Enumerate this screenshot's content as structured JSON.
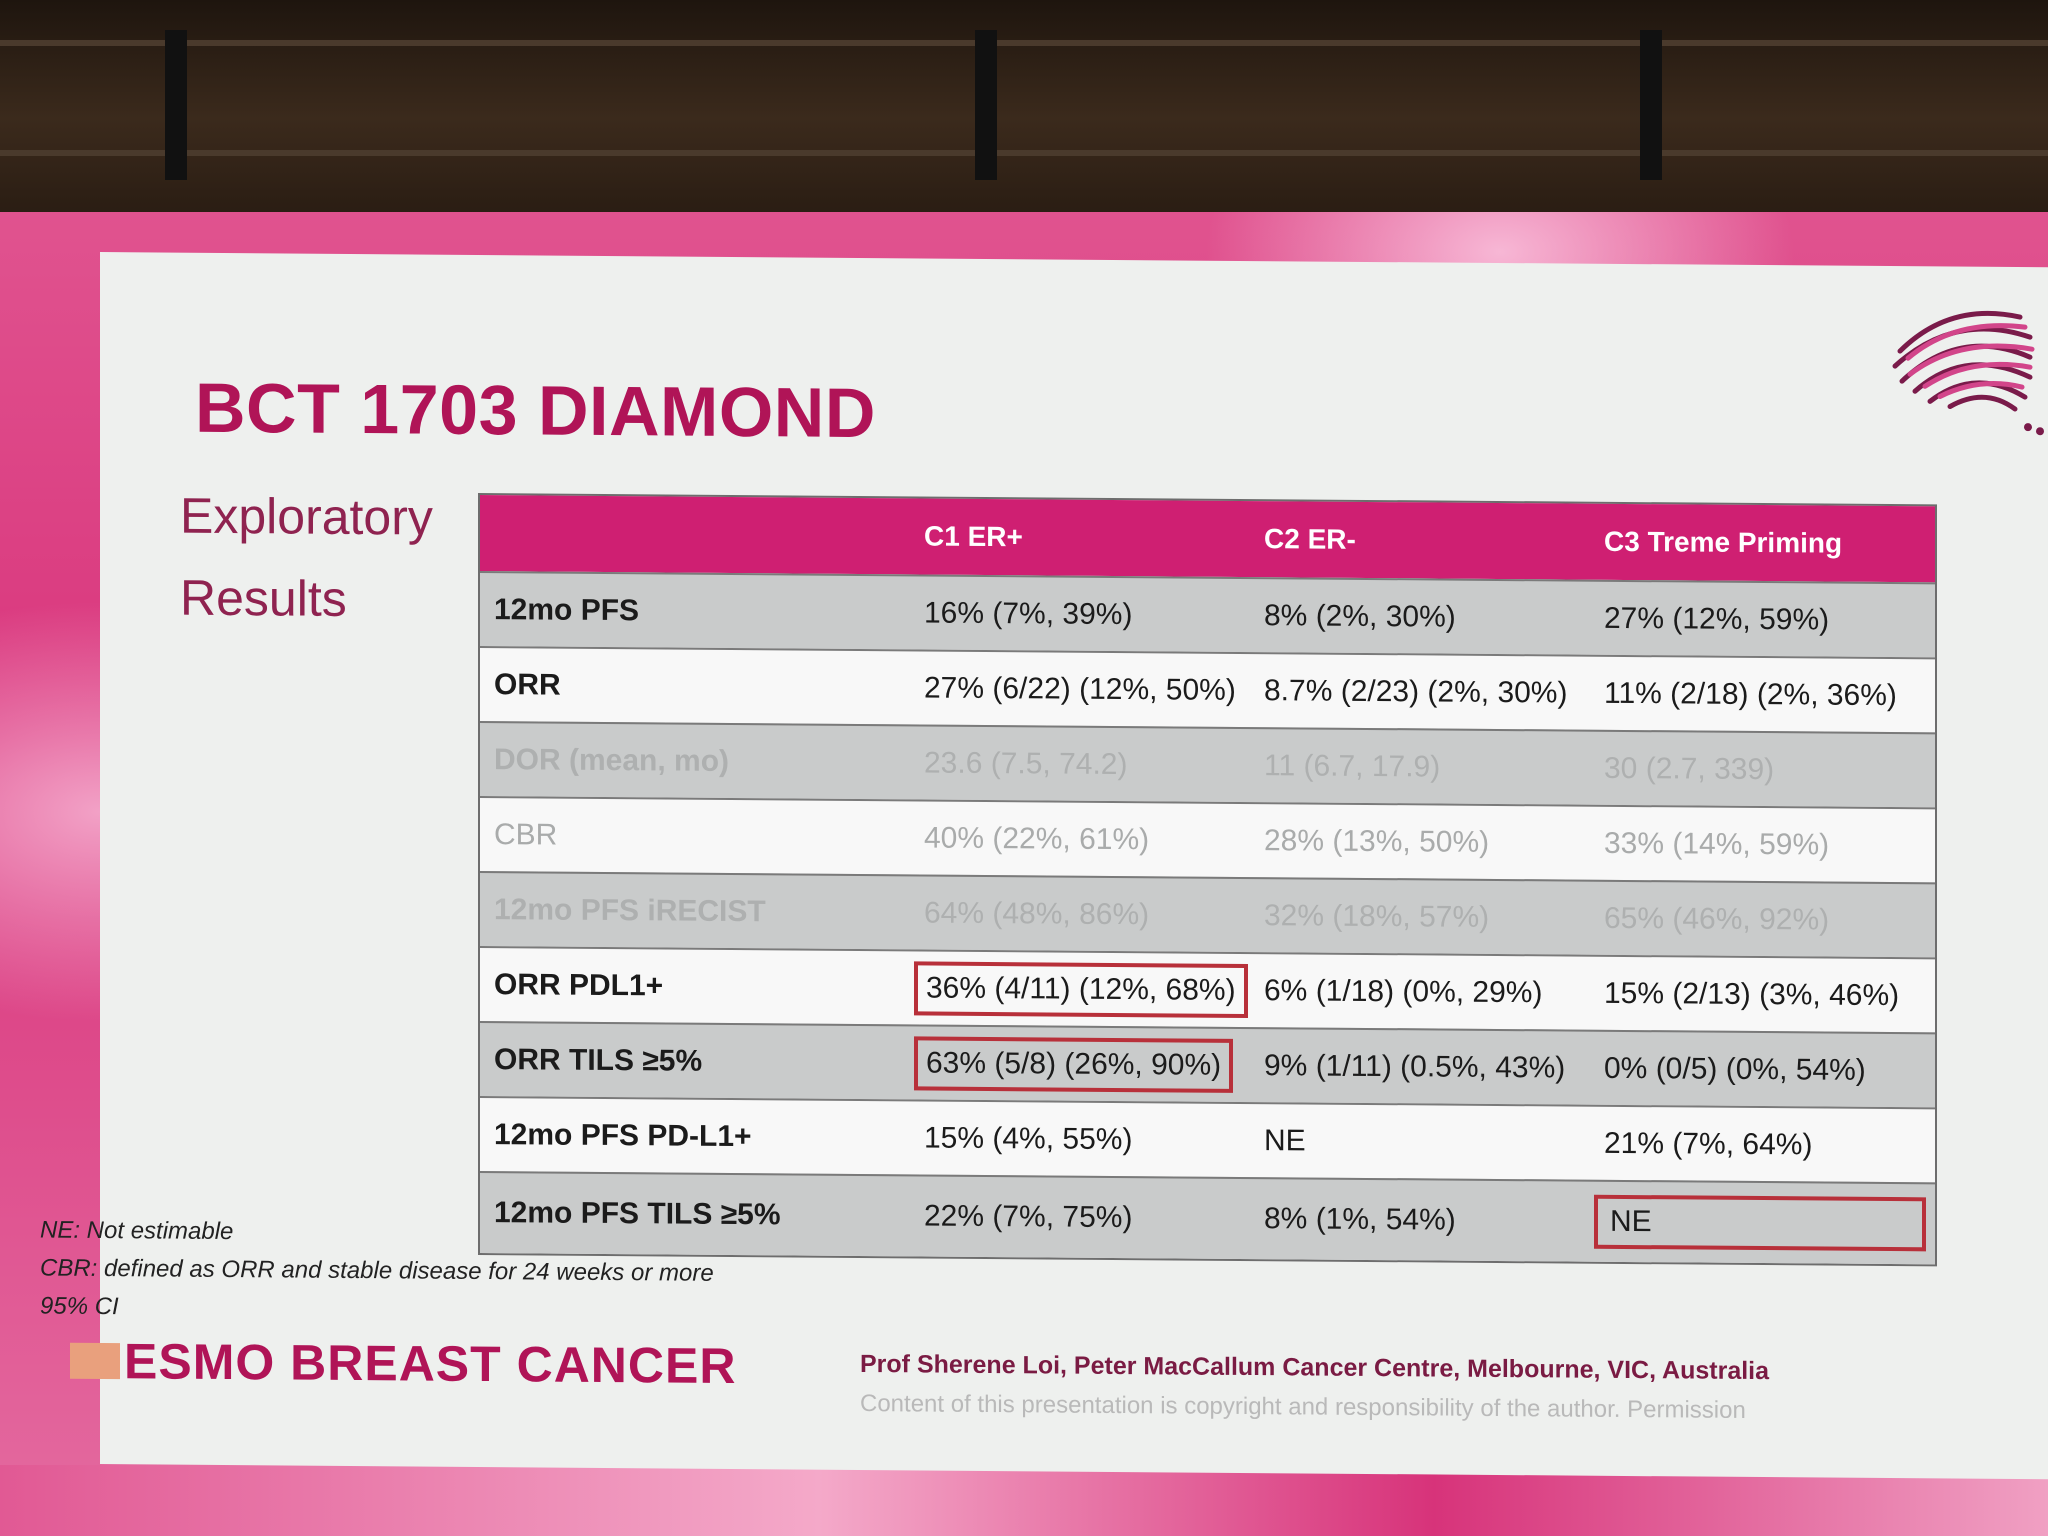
{
  "slide": {
    "title": "BCT 1703 DIAMOND",
    "subtitle_line1": "Exploratory",
    "subtitle_line2": "Results"
  },
  "table": {
    "headers": [
      "",
      "C1 ER+",
      "C2 ER-",
      "C3 Treme Priming"
    ],
    "rows": [
      {
        "label": "12mo PFS",
        "c1": "16% (7%, 39%)",
        "c2": "8% (2%, 30%)",
        "c3": "27% (12%, 59%)"
      },
      {
        "label": "ORR",
        "c1": "27% (6/22) (12%, 50%)",
        "c2": "8.7% (2/23) (2%, 30%)",
        "c3": "11% (2/18) (2%, 36%)"
      },
      {
        "label": "DOR (mean, mo)",
        "c1": "23.6 (7.5, 74.2)",
        "c2": "11 (6.7, 17.9)",
        "c3": "30 (2.7, 339)"
      },
      {
        "label": "CBR",
        "c1": "40% (22%, 61%)",
        "c2": "28% (13%, 50%)",
        "c3": "33% (14%, 59%)"
      },
      {
        "label": "12mo PFS iRECIST",
        "c1": "64% (48%, 86%)",
        "c2": "32% (18%, 57%)",
        "c3": "65% (46%, 92%)"
      },
      {
        "label": "ORR PDL1+",
        "c1": "36% (4/11) (12%, 68%)",
        "c2": "6% (1/18) (0%, 29%)",
        "c3": "15% (2/13) (3%, 46%)"
      },
      {
        "label": "ORR TILS ≥5%",
        "c1": "63% (5/8) (26%, 90%)",
        "c2": "9% (1/11) (0.5%, 43%)",
        "c3": "0% (0/5) (0%, 54%)"
      },
      {
        "label": "12mo PFS PD-L1+",
        "c1": "15% (4%, 55%)",
        "c2": "NE",
        "c3": "21% (7%, 64%)"
      },
      {
        "label": "12mo PFS TILS ≥5%",
        "c1": "22% (7%, 75%)",
        "c2": "8% (1%, 54%)",
        "c3": "NE"
      }
    ]
  },
  "notes": [
    "NE: Not estimable",
    "CBR: defined as ORR and stable disease for 24 weeks or more",
    "95% CI"
  ],
  "brand": {
    "name": "ESMO BREAST CANCER"
  },
  "footer": {
    "author": "Prof Sherene Loi, Peter MacCallum Cancer Centre, Melbourne, VIC, Australia",
    "copyright": "Content of this presentation is copyright and responsibility of the author. Permission"
  },
  "colors": {
    "accent": "#cf1f72",
    "title": "#b01457",
    "highlight_box": "#b8303a"
  },
  "icons": {
    "logo": "fingerprint-australia-icon"
  }
}
